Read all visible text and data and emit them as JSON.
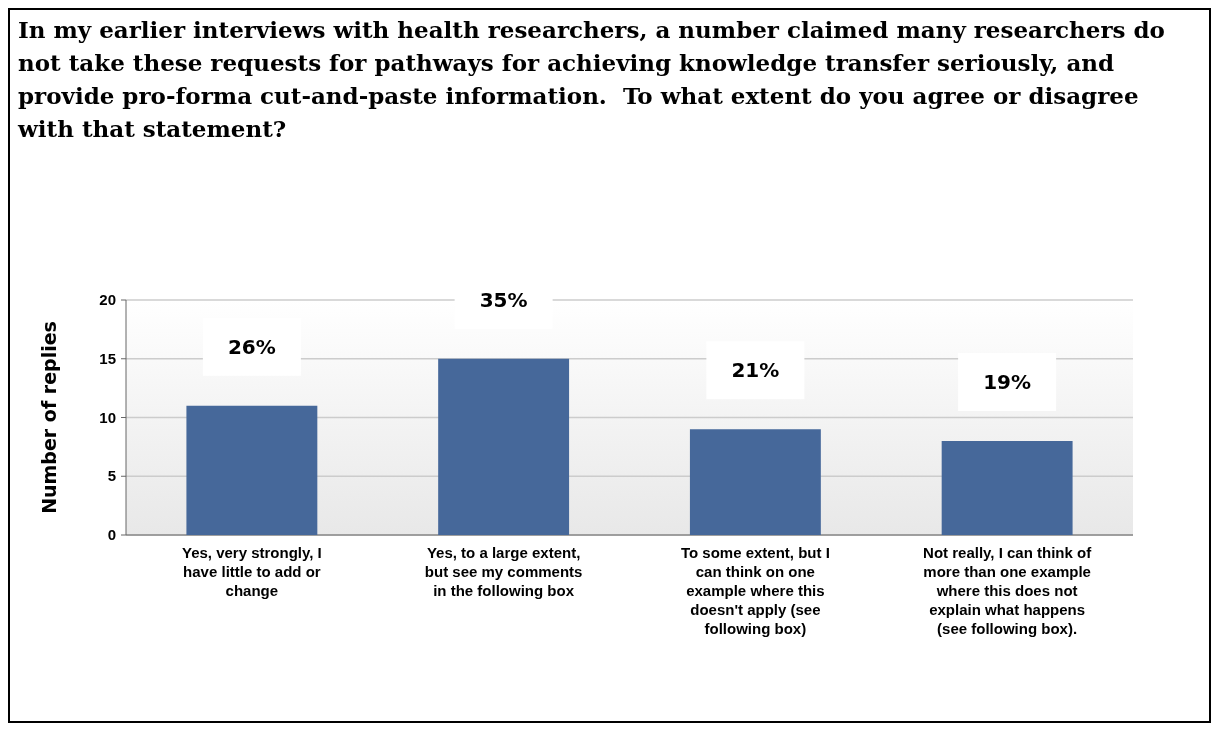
{
  "chart_data": {
    "type": "bar",
    "title": "In my earlier interviews with health researchers, a number claimed many researchers do not take these requests for pathways for achieving knowledge transfer seriously, and provide pro-forma cut-and-paste information.  To what extent do you agree or disagree with that statement?",
    "ylabel": "Number of replies",
    "categories": [
      "Yes, very strongly, I have little to add or change",
      "Yes, to a large extent, but see my comments in the following box",
      "To some extent, but I can think on one example where this doesn't apply (see following box)",
      "Not really, I can think of more than one example where this does not explain what happens (see following box)."
    ],
    "values": [
      11,
      15,
      9,
      8
    ],
    "annotations": [
      {
        "text": "26%",
        "x": "Yes, very strongly, I have little to add or change",
        "y": 11
      },
      {
        "text": "35%",
        "x": "Yes, to a large extent, but see my comments in the following box",
        "y": 15
      },
      {
        "text": "21%",
        "x": "To some extent, but I can think on one example where this doesn't apply (see following box)",
        "y": 9
      },
      {
        "text": "19%",
        "x": "Not really, I can think of more than one example where this does not explain what happens (see following box).",
        "y": 8
      }
    ],
    "color": "#46689a",
    "ylim": [
      0,
      20
    ],
    "yticks": [
      0,
      5,
      10,
      15,
      20
    ],
    "grid": "y"
  }
}
